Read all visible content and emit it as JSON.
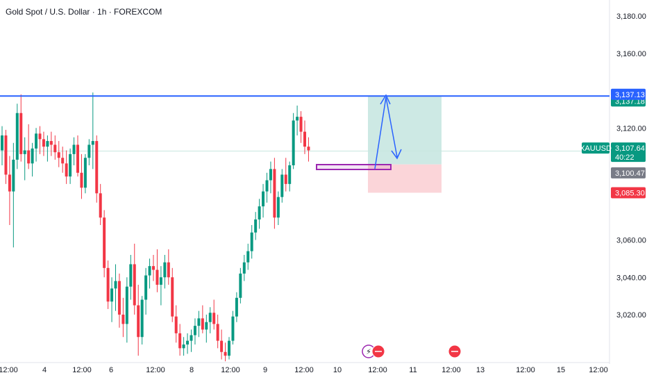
{
  "header": {
    "title": "Gold Spot / U.S. Dollar · 1h · FOREXCOM"
  },
  "colors": {
    "up": "#089981",
    "down": "#f23645",
    "blue_line": "#2962ff",
    "profit_zone": "#cde9e4",
    "loss_zone": "#fbd5d9",
    "box": "#9c27b0",
    "arrow": "#2962ff",
    "current_price_line": "#c8e6df"
  },
  "chart_data": {
    "type": "candlestick",
    "price_axis": {
      "ticks": [
        "3,180.00",
        "3,160.00",
        "3,120.00",
        "3,060.00",
        "3,040.00",
        "3,020.00"
      ],
      "tick_values": [
        3180,
        3160,
        3120,
        3060,
        3040,
        3020
      ]
    },
    "time_axis": {
      "labels": [
        "12:00",
        "4",
        "12:00",
        "6",
        "12:00",
        "8",
        "12:00",
        "9",
        "12:00",
        "10",
        "12:00",
        "11",
        "12:00",
        "13",
        "12:00",
        "15",
        "12:00"
      ]
    },
    "horizontal_line": {
      "value": 3137.13
    },
    "position": {
      "entry": 3100.47,
      "target": 3137.18,
      "stop": 3085.3
    },
    "current": {
      "symbol": "XAUUSD",
      "price": "3,107.64",
      "countdown": "40:22"
    },
    "price_labels": {
      "target": "3,137.18",
      "line": "3,137.13",
      "entry": "3,100.47",
      "stop": "3,085.30"
    },
    "candles": [
      [
        3108,
        3121,
        3100,
        3116
      ],
      [
        3116,
        3119,
        3090,
        3095
      ],
      [
        3095,
        3105,
        3068,
        3086
      ],
      [
        3086,
        3112,
        3056,
        3103
      ],
      [
        3103,
        3133,
        3098,
        3128
      ],
      [
        3128,
        3138,
        3102,
        3106
      ],
      [
        3106,
        3115,
        3092,
        3108
      ],
      [
        3108,
        3122,
        3098,
        3101
      ],
      [
        3101,
        3112,
        3094,
        3109
      ],
      [
        3109,
        3120,
        3102,
        3117
      ],
      [
        3117,
        3121,
        3106,
        3114
      ],
      [
        3114,
        3118,
        3105,
        3110
      ],
      [
        3110,
        3116,
        3102,
        3113
      ],
      [
        3113,
        3118,
        3105,
        3111
      ],
      [
        3111,
        3116,
        3103,
        3107
      ],
      [
        3107,
        3113,
        3099,
        3104
      ],
      [
        3104,
        3110,
        3096,
        3101
      ],
      [
        3101,
        3108,
        3090,
        3094
      ],
      [
        3094,
        3109,
        3090,
        3106
      ],
      [
        3106,
        3115,
        3100,
        3111
      ],
      [
        3111,
        3116,
        3094,
        3096
      ],
      [
        3096,
        3106,
        3082,
        3088
      ],
      [
        3088,
        3106,
        3085,
        3104
      ],
      [
        3104,
        3114,
        3100,
        3111
      ],
      [
        3111,
        3139,
        3098,
        3113
      ],
      [
        3113,
        3116,
        3080,
        3085
      ],
      [
        3085,
        3090,
        3068,
        3072
      ],
      [
        3072,
        3076,
        3040,
        3045
      ],
      [
        3045,
        3049,
        3023,
        3027
      ],
      [
        3027,
        3040,
        3016,
        3034
      ],
      [
        3034,
        3047,
        3022,
        3038
      ],
      [
        3038,
        3042,
        3013,
        3020
      ],
      [
        3020,
        3029,
        3008,
        3015
      ],
      [
        3015,
        3040,
        3005,
        3035
      ],
      [
        3035,
        3052,
        3028,
        3047
      ],
      [
        3047,
        3058,
        3020,
        3025
      ],
      [
        3025,
        3036,
        2998,
        3008
      ],
      [
        3008,
        3030,
        3004,
        3028
      ],
      [
        3028,
        3045,
        3020,
        3041
      ],
      [
        3041,
        3050,
        3034,
        3046
      ],
      [
        3046,
        3052,
        3038,
        3044
      ],
      [
        3044,
        3055,
        3032,
        3036
      ],
      [
        3036,
        3046,
        3025,
        3040
      ],
      [
        3040,
        3052,
        3034,
        3048
      ],
      [
        3048,
        3055,
        3036,
        3040
      ],
      [
        3040,
        3045,
        3016,
        3019
      ],
      [
        3019,
        3025,
        3005,
        3010
      ],
      [
        3010,
        3015,
        2998,
        3002
      ],
      [
        3002,
        3008,
        2998,
        3004
      ],
      [
        3004,
        3010,
        2999,
        3006
      ],
      [
        3006,
        3012,
        3000,
        3009
      ],
      [
        3009,
        3018,
        3004,
        3014
      ],
      [
        3014,
        3022,
        3008,
        3018
      ],
      [
        3018,
        3025,
        3010,
        3012
      ],
      [
        3012,
        3020,
        3005,
        3016
      ],
      [
        3016,
        3024,
        3010,
        3021
      ],
      [
        3021,
        3028,
        3012,
        3015
      ],
      [
        3015,
        3020,
        3002,
        3006
      ],
      [
        3006,
        3012,
        2996,
        3000
      ],
      [
        3000,
        3005,
        2995,
        2998
      ],
      [
        2998,
        3008,
        2996,
        3006
      ],
      [
        3006,
        3022,
        3004,
        3019
      ],
      [
        3019,
        3032,
        3016,
        3029
      ],
      [
        3029,
        3045,
        3026,
        3042
      ],
      [
        3042,
        3052,
        3038,
        3048
      ],
      [
        3048,
        3058,
        3044,
        3054
      ],
      [
        3054,
        3068,
        3050,
        3064
      ],
      [
        3064,
        3075,
        3060,
        3071
      ],
      [
        3071,
        3082,
        3066,
        3078
      ],
      [
        3078,
        3090,
        3072,
        3086
      ],
      [
        3086,
        3096,
        3080,
        3092
      ],
      [
        3092,
        3102,
        3085,
        3098
      ],
      [
        3098,
        3104,
        3066,
        3072
      ],
      [
        3072,
        3086,
        3068,
        3083
      ],
      [
        3083,
        3098,
        3080,
        3095
      ],
      [
        3095,
        3104,
        3086,
        3090
      ],
      [
        3090,
        3102,
        3086,
        3100
      ],
      [
        3100,
        3128,
        3098,
        3124
      ],
      [
        3124,
        3132,
        3116,
        3126
      ],
      [
        3126,
        3129,
        3112,
        3118
      ],
      [
        3118,
        3124,
        3106,
        3110
      ],
      [
        3110,
        3115,
        3102,
        3108
      ]
    ]
  }
}
